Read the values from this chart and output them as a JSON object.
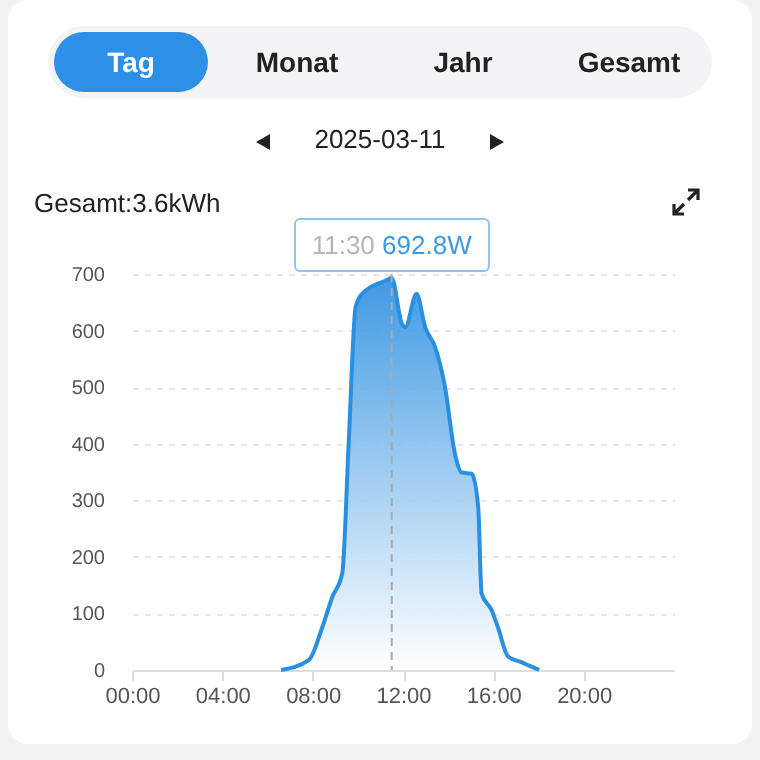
{
  "chart_data": {
    "type": "area",
    "title": "2025-03-11",
    "subtitle": "Gesamt:3.6kWh",
    "annotations": [
      "Tag",
      "Monat",
      "Jahr",
      "Gesamt",
      {
        "text": "11:30 692.8W",
        "x": 11.5,
        "y": 692.8
      }
    ],
    "series": [
      {
        "color": "#2b8fe0",
        "x": [
          6.6,
          7.84,
          8.43,
          8.87,
          9.31,
          9.6,
          9.9,
          10.19,
          11.22,
          11.5,
          11.95,
          12.1,
          12.6,
          12.98,
          13.42,
          13.86,
          14.3,
          14.6,
          15.04,
          15.33,
          15.48,
          15.92,
          16.2,
          16.65,
          17.24,
          18.03
        ],
        "values": [
          0,
          18,
          76,
          129,
          171,
          406,
          641,
          665,
          688,
          692.8,
          612,
          606,
          665,
          606,
          571,
          500,
          382,
          349,
          347,
          288,
          135,
          106,
          76,
          24,
          14,
          0
        ]
      }
    ],
    "xlim": [
      0,
      24
    ],
    "xticks": [
      {
        "value": 0,
        "label": "00:00"
      },
      {
        "value": 4,
        "label": "04:00"
      },
      {
        "value": 8,
        "label": "08:00"
      },
      {
        "value": 12,
        "label": "12:00"
      },
      {
        "value": 16,
        "label": "16:00"
      },
      {
        "value": 20,
        "label": "20:00"
      }
    ],
    "ylim": [
      0,
      700
    ],
    "yticks": [
      0,
      100,
      200,
      300,
      400,
      500,
      600,
      700
    ],
    "grid": "y",
    "marker": "none",
    "line_style": "solid",
    "ref_lines": [
      {
        "axis": "x",
        "value": 11.5,
        "color": "#aaaaaa",
        "line_style": "dashed"
      }
    ]
  }
}
